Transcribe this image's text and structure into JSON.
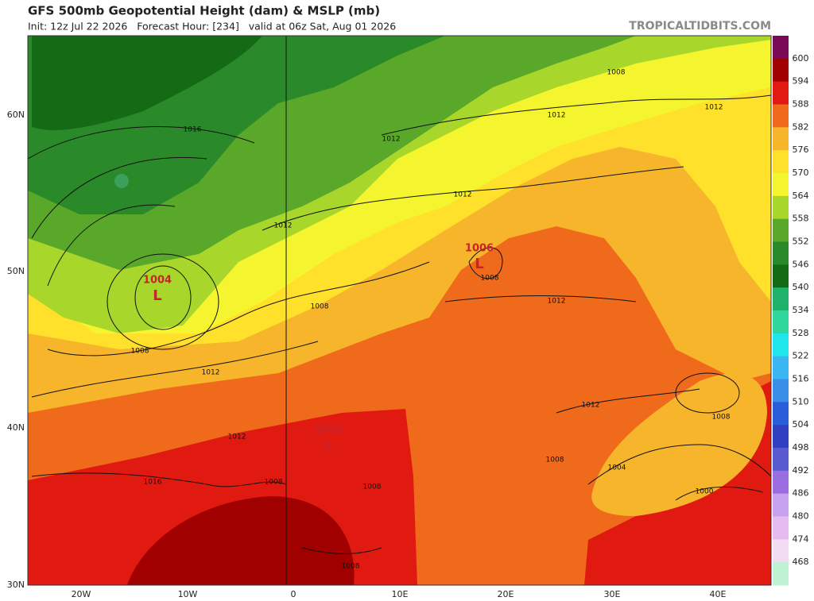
{
  "header": {
    "title": "GFS 500mb Geopotential Height (dam) & MSLP (mb)",
    "subtitle": "Init: 12z Jul 22 2026   Forecast Hour: [234]   valid at 06z Sat, Aug 01 2026",
    "watermark": "TROPICALTIDBITS.COM"
  },
  "axes": {
    "latitudes": [
      "60N",
      "50N",
      "40N",
      "30N"
    ],
    "longitudes": [
      "20W",
      "10W",
      "0",
      "10E",
      "20E",
      "30E",
      "40E"
    ]
  },
  "colorbar": {
    "levels": [
      600,
      594,
      588,
      582,
      576,
      570,
      564,
      558,
      552,
      546,
      540,
      534,
      528,
      522,
      516,
      510,
      504,
      498,
      492,
      486,
      480,
      474,
      468
    ],
    "colors": [
      "#7a0a55",
      "#a00000",
      "#e01a10",
      "#f06a1c",
      "#f7b52c",
      "#ffe02a",
      "#f4f52e",
      "#a8d62a",
      "#5aa82a",
      "#2a8a2a",
      "#156a15",
      "#1fb26a",
      "#2fd79a",
      "#1fe6ea",
      "#3ab6f2",
      "#3a8ee8",
      "#2a5ed8",
      "#3040c0",
      "#5a5ad0",
      "#9a6ee0",
      "#c6a2f0",
      "#e6bcf0",
      "#f2dcf2",
      "#bff2d4"
    ]
  },
  "lows": [
    {
      "pressure": 1004,
      "symbol": "L"
    },
    {
      "pressure": 1006,
      "symbol": "L"
    },
    {
      "pressure": 1006,
      "symbol": "L"
    }
  ],
  "isobar_labels": [
    1016,
    1012,
    1012,
    1008,
    1012,
    1012,
    1012,
    1008,
    1012,
    1008,
    1008,
    1012,
    1012,
    1016,
    1008,
    1008,
    1012,
    1008,
    1008,
    1004,
    1000,
    1008
  ]
}
